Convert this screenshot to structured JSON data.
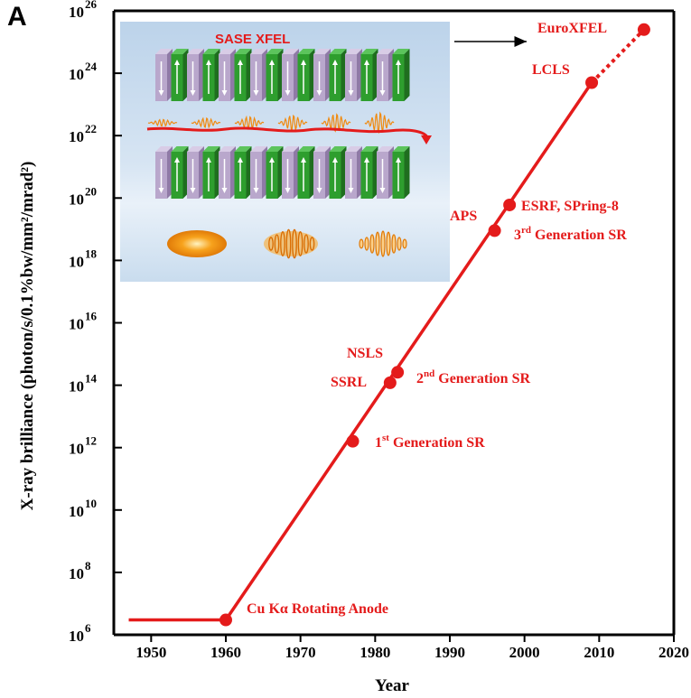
{
  "panel_label": "A",
  "colors": {
    "accent": "#e41b1b",
    "axis": "#000000",
    "magnet_green": "#2e9e2e",
    "magnet_purple": "#b9a7cc",
    "beam_orange": "#f08a10"
  },
  "inset": {
    "title": "SASE  XFEL",
    "arrow_icon": "right-arrow-icon"
  },
  "chart_data": {
    "type": "line",
    "xlabel": "Year",
    "ylabel": "X-ray brilliance (photon/s/0.1%bw/mm²/mrad²)",
    "x_ticks": [
      1950,
      1960,
      1970,
      1980,
      1990,
      2000,
      2010,
      2020
    ],
    "xlim": [
      1945,
      2020
    ],
    "y_scale": "log",
    "ylim": [
      1000000.0,
      1e+26
    ],
    "y_ticks": [
      {
        "exp": 6,
        "label": "10",
        "sup": "6"
      },
      {
        "exp": 8,
        "label": "10",
        "sup": "8"
      },
      {
        "exp": 10,
        "label": "10",
        "sup": "10"
      },
      {
        "exp": 12,
        "label": "10",
        "sup": "12"
      },
      {
        "exp": 14,
        "label": "10",
        "sup": "14"
      },
      {
        "exp": 16,
        "label": "10",
        "sup": "16"
      },
      {
        "exp": 18,
        "label": "10",
        "sup": "18"
      },
      {
        "exp": 20,
        "label": "10",
        "sup": "20"
      },
      {
        "exp": 22,
        "label": "10",
        "sup": "22"
      },
      {
        "exp": 24,
        "label": "10",
        "sup": "24"
      },
      {
        "exp": 26,
        "label": "10",
        "sup": "26"
      }
    ],
    "flat_segment": {
      "x": [
        1947,
        1960
      ],
      "y": [
        3000000.0,
        3000000.0
      ]
    },
    "trend_line": {
      "x": [
        1960,
        2009
      ],
      "y": [
        3000000.0,
        5e+23
      ]
    },
    "dotted_segment": {
      "x": [
        2009,
        2016
      ],
      "y": [
        5e+23,
        2.5e+25
      ]
    },
    "points": [
      {
        "x": 1960,
        "y": 3000000.0
      },
      {
        "x": 1977,
        "y": 1600000000000.0
      },
      {
        "x": 1982,
        "y": 120000000000000.0
      },
      {
        "x": 1983,
        "y": 260000000000000.0
      },
      {
        "x": 1996,
        "y": 9e+18
      },
      {
        "x": 1998,
        "y": 6e+19
      },
      {
        "x": 2009,
        "y": 5e+23
      },
      {
        "x": 2016,
        "y": 2.5e+25
      }
    ],
    "annotations": [
      {
        "text": "Cu Kα Rotating Anode"
      },
      {
        "text": "Generation SR",
        "prefix": "1",
        "sup": "st"
      },
      {
        "text": "SSRL"
      },
      {
        "text": "NSLS"
      },
      {
        "text": "Generation SR",
        "prefix": "2",
        "sup": "nd"
      },
      {
        "text": "APS"
      },
      {
        "text": "ESRF, SPring-8"
      },
      {
        "text": "Generation SR",
        "prefix": "3",
        "sup": "rd"
      },
      {
        "text": "LCLS"
      },
      {
        "text": "EuroXFEL"
      }
    ],
    "grid": false
  }
}
